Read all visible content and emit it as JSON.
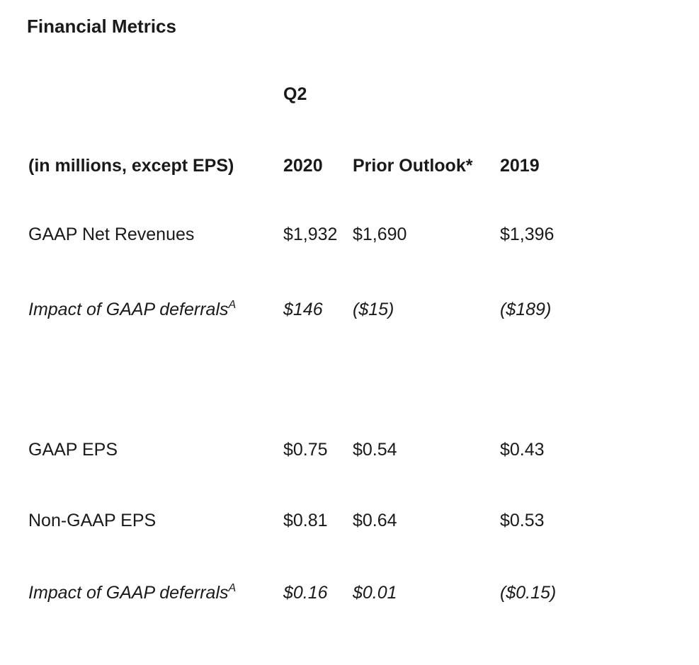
{
  "title": "Financial Metrics",
  "period_header": "Q2",
  "columns": {
    "label": "(in millions, except EPS)",
    "c1": "2020",
    "c2": "Prior Outlook*",
    "c3": "2019"
  },
  "rows": [
    {
      "label": "GAAP Net Revenues",
      "sup": "",
      "c1": "$1,932",
      "c2": "$1,690",
      "c3": "$1,396"
    },
    {
      "label": "Impact of GAAP deferrals",
      "sup": "A",
      "c1": "$146",
      "c2": "($15)",
      "c3": "($189)"
    },
    {
      "label": "GAAP EPS",
      "sup": "",
      "c1": "$0.75",
      "c2": "$0.54",
      "c3": "$0.43"
    },
    {
      "label": "Non-GAAP EPS",
      "sup": "",
      "c1": "$0.81",
      "c2": "$0.64",
      "c3": "$0.53"
    },
    {
      "label": "Impact of GAAP deferrals",
      "sup": "A",
      "c1": "$0.16",
      "c2": "$0.01",
      "c3": "($0.15)"
    }
  ]
}
